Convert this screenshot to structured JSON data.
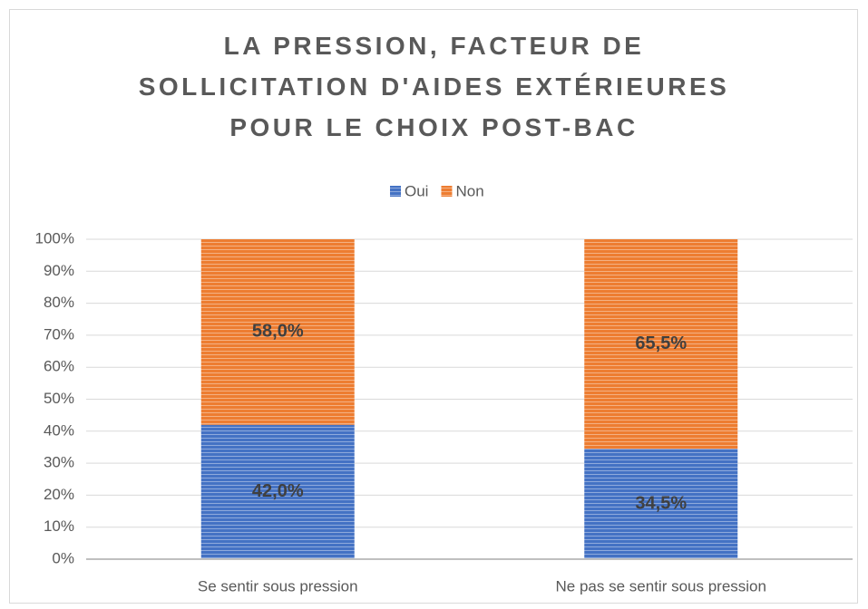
{
  "chart_data": {
    "type": "stacked_bar",
    "title": "LA PRESSION, FACTEUR DE SOLLICITATION D'AIDES EXTÉRIEURES POUR LE CHOIX POST-BAC",
    "categories": [
      "Se sentir sous pression",
      "Ne pas se sentir sous pression"
    ],
    "series": [
      {
        "name": "Oui",
        "color": "#4472c4",
        "values": [
          42,
          34.5
        ],
        "value_labels": [
          "42,0%",
          "34,5%"
        ]
      },
      {
        "name": "Non",
        "color": "#ed7d31",
        "values": [
          58,
          65.5
        ],
        "value_labels": [
          "58,0%",
          "65,5%"
        ]
      }
    ],
    "ylim": [
      0,
      100
    ],
    "yticks": [
      {
        "value": 0,
        "label": "0%"
      },
      {
        "value": 10,
        "label": "10%"
      },
      {
        "value": 20,
        "label": "20%"
      },
      {
        "value": 30,
        "label": "30%"
      },
      {
        "value": 40,
        "label": "40%"
      },
      {
        "value": 50,
        "label": "50%"
      },
      {
        "value": 60,
        "label": "60%"
      },
      {
        "value": 70,
        "label": "70%"
      },
      {
        "value": 80,
        "label": "80%"
      },
      {
        "value": 90,
        "label": "90%"
      },
      {
        "value": 100,
        "label": "100%"
      }
    ],
    "grid": true,
    "legend": "top"
  }
}
